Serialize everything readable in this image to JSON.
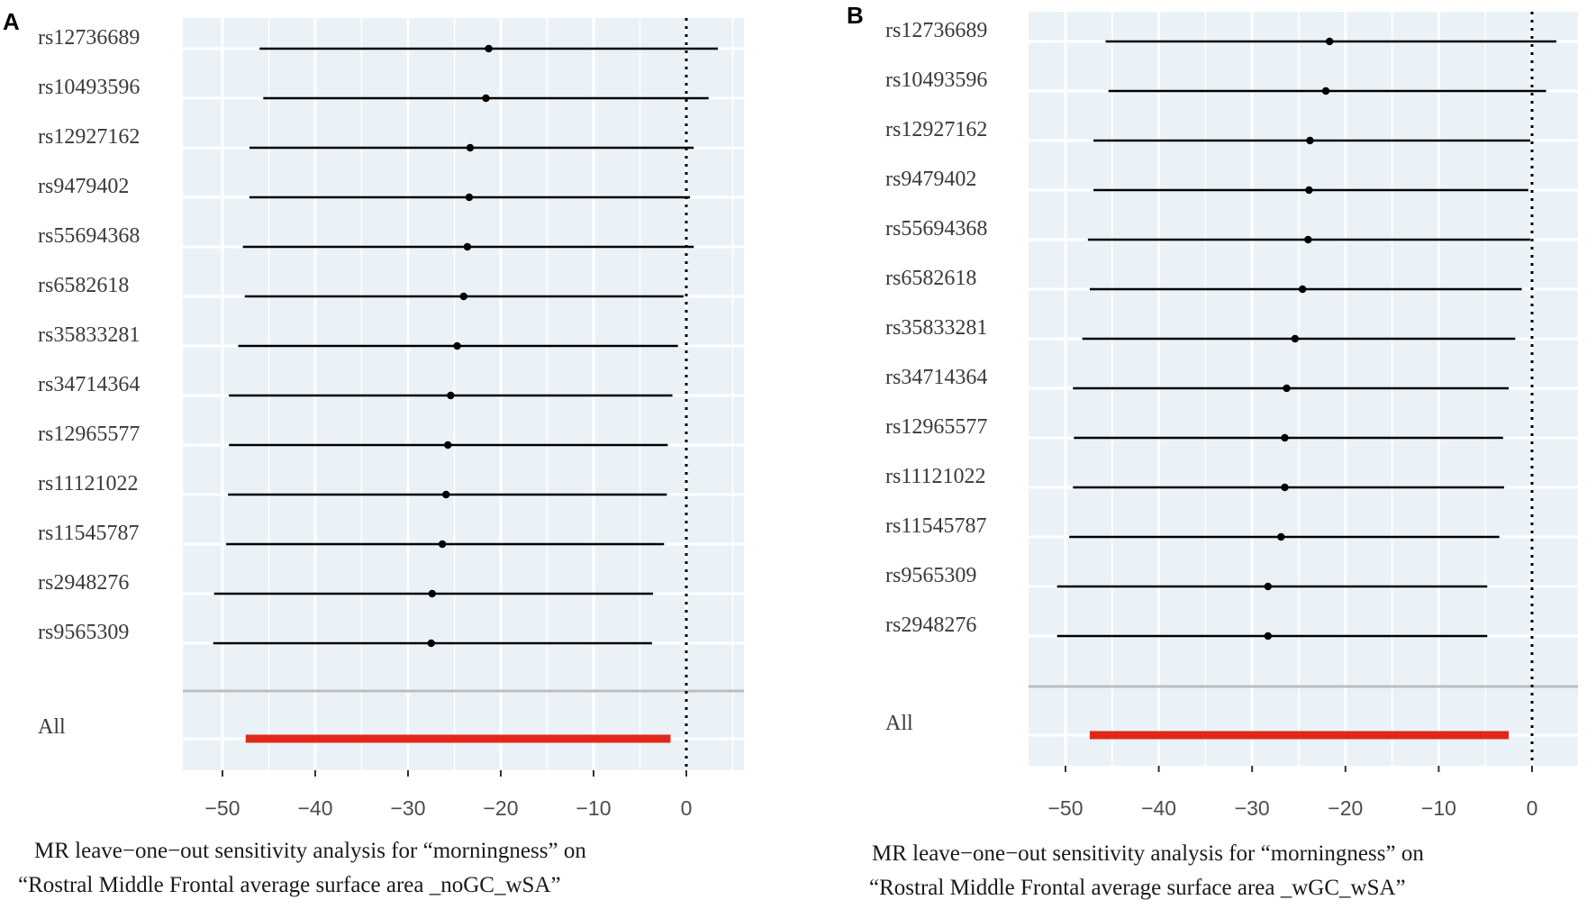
{
  "chart_data": [
    {
      "panel": "A",
      "type": "forest",
      "caption_lines": [
        "MR leave−one−out sensitivity analysis for “morningness” on",
        "“Rostral Middle Frontal average surface area _noGC_wSA”"
      ],
      "xticks": [
        "−50",
        "−40",
        "−30",
        "−20",
        "−10",
        "0"
      ],
      "xtick_values": [
        -50,
        -40,
        -30,
        -20,
        -10,
        0
      ],
      "xlim": [
        -53,
        6
      ],
      "reference_line": 0,
      "snps": [
        {
          "label": "rs12736689",
          "beta": -21.3,
          "lower": -46.0,
          "upper": 3.4
        },
        {
          "label": "rs10493596",
          "beta": -21.6,
          "lower": -45.6,
          "upper": 2.4
        },
        {
          "label": "rs12927162",
          "beta": -23.3,
          "lower": -47.1,
          "upper": 0.8
        },
        {
          "label": "rs9479402",
          "beta": -23.4,
          "lower": -47.1,
          "upper": 0.4
        },
        {
          "label": "rs55694368",
          "beta": -23.6,
          "lower": -47.8,
          "upper": 0.8
        },
        {
          "label": "rs6582618",
          "beta": -24.0,
          "lower": -47.6,
          "upper": -0.3
        },
        {
          "label": "rs35833281",
          "beta": -24.7,
          "lower": -48.3,
          "upper": -0.9
        },
        {
          "label": "rs34714364",
          "beta": -25.4,
          "lower": -49.3,
          "upper": -1.5
        },
        {
          "label": "rs12965577",
          "beta": -25.7,
          "lower": -49.3,
          "upper": -2.0
        },
        {
          "label": "rs11121022",
          "beta": -25.9,
          "lower": -49.4,
          "upper": -2.1
        },
        {
          "label": "rs11545787",
          "beta": -26.3,
          "lower": -49.6,
          "upper": -2.4
        },
        {
          "label": "rs2948276",
          "beta": -27.4,
          "lower": -50.9,
          "upper": -3.6
        },
        {
          "label": "rs9565309",
          "beta": -27.5,
          "lower": -51.0,
          "upper": -3.7
        }
      ],
      "overall": {
        "label": "All",
        "lower": -47.5,
        "upper": -1.7
      }
    },
    {
      "panel": "B",
      "type": "forest",
      "caption_lines": [
        "MR leave−one−out sensitivity analysis for “morningness” on",
        "“Rostral Middle Frontal average surface area _wGC_wSA”"
      ],
      "xticks": [
        "−50",
        "−40",
        "−30",
        "−20",
        "−10",
        "0"
      ],
      "xtick_values": [
        -50,
        -40,
        -30,
        -20,
        -10,
        0
      ],
      "xlim": [
        -53,
        6
      ],
      "reference_line": 0,
      "snps": [
        {
          "label": "rs12736689",
          "beta": -21.7,
          "lower": -45.7,
          "upper": 2.6
        },
        {
          "label": "rs10493596",
          "beta": -22.1,
          "lower": -45.4,
          "upper": 1.5
        },
        {
          "label": "rs12927162",
          "beta": -23.8,
          "lower": -47.0,
          "upper": -0.2
        },
        {
          "label": "rs9479402",
          "beta": -23.9,
          "lower": -47.0,
          "upper": -0.4
        },
        {
          "label": "rs55694368",
          "beta": -24.0,
          "lower": -47.6,
          "upper": -0.2
        },
        {
          "label": "rs6582618",
          "beta": -24.6,
          "lower": -47.4,
          "upper": -1.1
        },
        {
          "label": "rs35833281",
          "beta": -25.4,
          "lower": -48.2,
          "upper": -1.8
        },
        {
          "label": "rs34714364",
          "beta": -26.3,
          "lower": -49.2,
          "upper": -2.5
        },
        {
          "label": "rs12965577",
          "beta": -26.5,
          "lower": -49.1,
          "upper": -3.1
        },
        {
          "label": "rs11121022",
          "beta": -26.5,
          "lower": -49.2,
          "upper": -3.0
        },
        {
          "label": "rs11545787",
          "beta": -26.9,
          "lower": -49.6,
          "upper": -3.5
        },
        {
          "label": "rs9565309",
          "beta": -28.3,
          "lower": -50.9,
          "upper": -4.8
        },
        {
          "label": "rs2948276",
          "beta": -28.3,
          "lower": -50.9,
          "upper": -4.8
        }
      ],
      "overall": {
        "label": "All",
        "lower": -47.4,
        "upper": -2.5
      }
    }
  ],
  "colors": {
    "panel_bg": "#ebf2f7",
    "grid": "#ffffff",
    "estimate_line": "#000000",
    "overall_line": "#e0281a",
    "separator": "#bdbdbd",
    "reference_line": "#000000"
  }
}
